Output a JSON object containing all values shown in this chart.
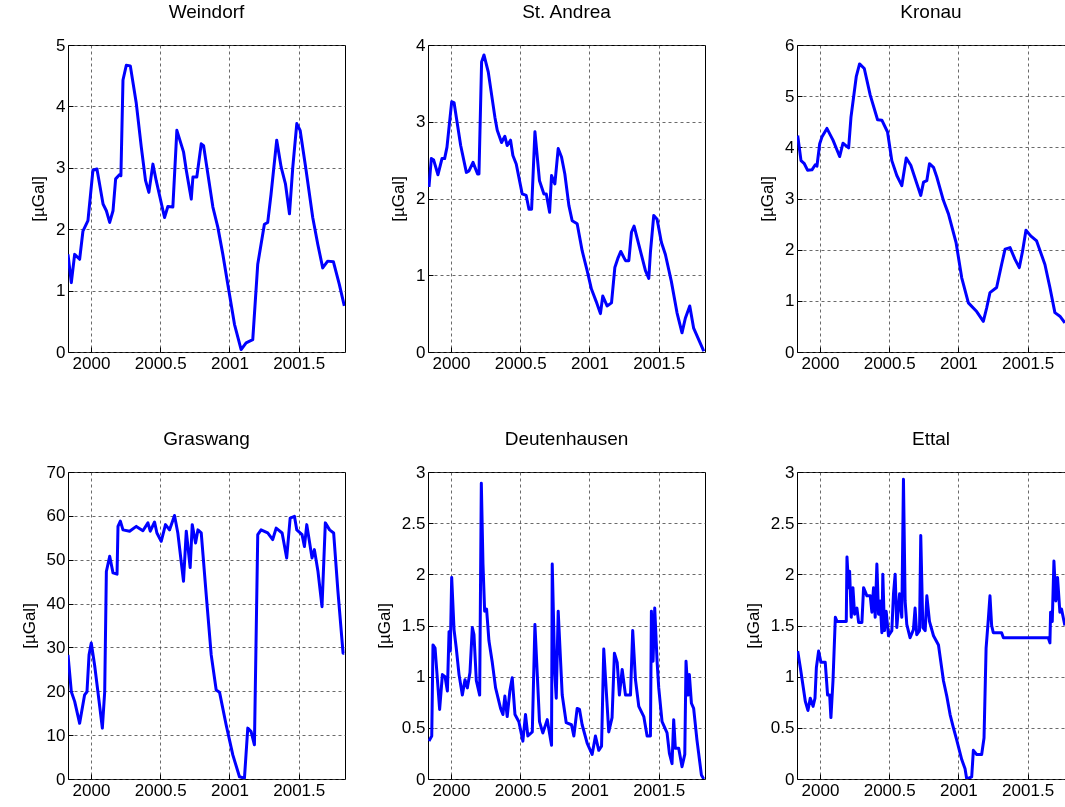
{
  "chart_data": [
    {
      "type": "line",
      "title": "Weindorf",
      "ylabel": "[µGal]",
      "xlim": [
        1999.834,
        2001.834
      ],
      "xticks": [
        2000,
        2000.5,
        2001,
        2001.5
      ],
      "ylim": [
        0,
        5
      ],
      "yticks": [
        0,
        1,
        2,
        3,
        4,
        5
      ],
      "grid": true,
      "series": [
        {
          "color": "#0000ff",
          "x": [
            1999.834,
            1999.858,
            1999.882,
            1999.918,
            1999.942,
            1999.978,
            2000.014,
            2000.043,
            2000.087,
            2000.111,
            2000.135,
            2000.159,
            2000.178,
            2000.207,
            2000.216,
            2000.231,
            2000.255,
            2000.284,
            2000.327,
            2000.363,
            2000.394,
            2000.418,
            2000.447,
            2000.471,
            2000.531,
            2000.555,
            2000.591,
            2000.62,
            2000.668,
            2000.688,
            2000.724,
            2000.736,
            2000.764,
            2000.796,
            2000.813,
            2000.88,
            2000.916,
            2000.952,
            2000.988,
            2001.036,
            2001.084,
            2001.12,
            2001.168,
            2001.204,
            2001.252,
            2001.276,
            2001.3,
            2001.341,
            2001.373,
            2001.404,
            2001.433,
            2001.457,
            2001.486,
            2001.51,
            2001.553,
            2001.601,
            2001.637,
            2001.673,
            2001.709,
            2001.75,
            2001.793,
            2001.829
          ],
          "values": [
            1.59,
            1.13,
            1.59,
            1.51,
            1.97,
            2.14,
            2.96,
            2.98,
            2.41,
            2.3,
            2.11,
            2.3,
            2.82,
            2.89,
            2.87,
            4.43,
            4.67,
            4.66,
            4.05,
            3.34,
            2.79,
            2.6,
            3.06,
            2.79,
            2.19,
            2.37,
            2.36,
            3.61,
            3.26,
            2.96,
            2.49,
            2.85,
            2.85,
            3.39,
            3.36,
            2.36,
            2.03,
            1.59,
            1.1,
            0.45,
            0.04,
            0.15,
            0.2,
            1.43,
            2.08,
            2.11,
            2.57,
            3.45,
            3.01,
            2.74,
            2.25,
            3.01,
            3.72,
            3.61,
            2.96,
            2.19,
            1.76,
            1.37,
            1.48,
            1.47,
            1.1,
            0.75
          ]
        }
      ]
    },
    {
      "type": "line",
      "title": "St. Andrea",
      "ylabel": "[µGal]",
      "xlim": [
        1999.834,
        2001.834
      ],
      "xticks": [
        2000,
        2000.5,
        2001,
        2001.5
      ],
      "ylim": [
        0,
        4
      ],
      "yticks": [
        0,
        1,
        2,
        3,
        4
      ],
      "grid": true,
      "series": [
        {
          "color": "#0000ff",
          "x": [
            1999.841,
            1999.858,
            1999.875,
            1999.906,
            1999.935,
            1999.954,
            1999.971,
            2000.005,
            2000.022,
            2000.07,
            2000.111,
            2000.13,
            2000.159,
            2000.192,
            2000.202,
            2000.221,
            2000.238,
            2000.269,
            2000.317,
            2000.334,
            2000.365,
            2000.389,
            2000.406,
            2000.43,
            2000.447,
            2000.471,
            2000.514,
            2000.543,
            2000.563,
            2000.582,
            2000.606,
            2000.639,
            2000.671,
            2000.688,
            2000.712,
            2000.726,
            2000.75,
            2000.774,
            2000.798,
            2000.822,
            2000.851,
            2000.875,
            2000.911,
            2000.947,
            2000.983,
            2001.014,
            2001.048,
            2001.079,
            2001.096,
            2001.127,
            2001.159,
            2001.183,
            2001.207,
            2001.226,
            2001.26,
            2001.284,
            2001.303,
            2001.322,
            2001.356,
            2001.404,
            2001.428,
            2001.44,
            2001.464,
            2001.488,
            2001.519,
            2001.548,
            2001.591,
            2001.632,
            2001.668,
            2001.692,
            2001.724,
            2001.752,
            2001.825
          ],
          "values": [
            2.15,
            2.52,
            2.5,
            2.31,
            2.52,
            2.52,
            2.67,
            3.26,
            3.25,
            2.69,
            2.34,
            2.36,
            2.47,
            2.32,
            2.32,
            3.78,
            3.87,
            3.65,
            3.06,
            2.89,
            2.73,
            2.81,
            2.69,
            2.76,
            2.56,
            2.45,
            2.06,
            2.04,
            1.86,
            1.86,
            2.87,
            2.23,
            2.06,
            2.06,
            1.82,
            2.3,
            2.19,
            2.65,
            2.54,
            2.32,
            1.91,
            1.71,
            1.67,
            1.32,
            1.06,
            0.82,
            0.66,
            0.5,
            0.73,
            0.6,
            0.64,
            1.1,
            1.23,
            1.31,
            1.19,
            1.19,
            1.56,
            1.64,
            1.4,
            1.06,
            0.96,
            1.3,
            1.78,
            1.73,
            1.43,
            1.27,
            0.92,
            0.51,
            0.25,
            0.44,
            0.6,
            0.31,
            0.01
          ]
        }
      ]
    },
    {
      "type": "line",
      "title": "Kronau",
      "ylabel": "[µGal]",
      "xlim": [
        1999.834,
        2001.77
      ],
      "xticks": [
        2000,
        2000.5,
        2001,
        2001.5
      ],
      "ylim": [
        0,
        6
      ],
      "yticks": [
        0,
        1,
        2,
        3,
        4,
        5,
        6
      ],
      "grid": true,
      "series": [
        {
          "color": "#0000ff",
          "x": [
            1999.839,
            1999.863,
            1999.887,
            1999.911,
            1999.942,
            1999.966,
            1999.978,
            1999.998,
            2000.014,
            2000.05,
            2000.094,
            2000.142,
            2000.166,
            2000.207,
            2000.224,
            2000.262,
            2000.286,
            2000.32,
            2000.363,
            2000.416,
            2000.447,
            2000.488,
            2000.519,
            2000.555,
            2000.591,
            2000.623,
            2000.656,
            2000.7,
            2000.728,
            2000.748,
            2000.772,
            2000.791,
            2000.82,
            2000.844,
            2000.892,
            2000.928,
            2000.983,
            2001.024,
            2001.072,
            2001.132,
            2001.18,
            2001.204,
            2001.228,
            2001.276,
            2001.312,
            2001.337,
            2001.373,
            2001.409,
            2001.44,
            2001.464,
            2001.488,
            2001.522,
            2001.565,
            2001.625,
            2001.661,
            2001.697,
            2001.733,
            2001.769
          ],
          "values": [
            4.23,
            3.74,
            3.68,
            3.55,
            3.56,
            3.66,
            3.63,
            4.07,
            4.2,
            4.37,
            4.14,
            3.82,
            4.08,
            3.99,
            4.59,
            5.38,
            5.63,
            5.54,
            5.02,
            4.54,
            4.53,
            4.3,
            3.74,
            3.45,
            3.25,
            3.79,
            3.65,
            3.29,
            3.06,
            3.32,
            3.35,
            3.68,
            3.61,
            3.42,
            2.96,
            2.7,
            2.14,
            1.45,
            0.96,
            0.79,
            0.6,
            0.86,
            1.16,
            1.26,
            1.71,
            2.01,
            2.04,
            1.81,
            1.65,
            1.98,
            2.38,
            2.27,
            2.17,
            1.71,
            1.26,
            0.77,
            0.7,
            0.57
          ]
        }
      ]
    },
    {
      "type": "line",
      "title": "Graswang",
      "ylabel": "[µGal]",
      "xlim": [
        1999.834,
        2001.834
      ],
      "xticks": [
        2000,
        2000.5,
        2001,
        2001.5
      ],
      "ylim": [
        0,
        70
      ],
      "yticks": [
        0,
        10,
        20,
        30,
        40,
        50,
        60,
        70
      ],
      "grid": true,
      "series": [
        {
          "color": "#0000ff",
          "x": [
            1999.834,
            1999.858,
            1999.882,
            1999.918,
            1999.954,
            1999.971,
            1999.986,
            2000.002,
            2000.026,
            2000.05,
            2000.082,
            2000.099,
            2000.111,
            2000.135,
            2000.159,
            2000.188,
            2000.195,
            2000.212,
            2000.231,
            2000.279,
            2000.327,
            2000.375,
            2000.411,
            2000.428,
            2000.459,
            2000.476,
            2000.507,
            2000.538,
            2000.567,
            2000.603,
            2000.627,
            2000.668,
            2000.688,
            2000.716,
            2000.731,
            2000.755,
            2000.772,
            2000.796,
            2000.832,
            2000.868,
            2000.904,
            2000.928,
            2000.976,
            2001.024,
            2001.072,
            2001.108,
            2001.132,
            2001.156,
            2001.18,
            2001.204,
            2001.228,
            2001.276,
            2001.312,
            2001.337,
            2001.38,
            2001.413,
            2001.438,
            2001.469,
            2001.486,
            2001.524,
            2001.541,
            2001.558,
            2001.596,
            2001.613,
            2001.639,
            2001.668,
            2001.692,
            2001.723,
            2001.752,
            2001.783,
            2001.82,
            2001.829
          ],
          "values": [
            28.3,
            19.9,
            17.7,
            12.7,
            19.2,
            19.9,
            28.3,
            31,
            26,
            19.9,
            11.6,
            19.9,
            47.3,
            50.8,
            47,
            46.7,
            57.6,
            58.8,
            56.8,
            56.5,
            57.6,
            56.6,
            58.4,
            56.5,
            58.6,
            56.1,
            54.2,
            58,
            56.8,
            60.1,
            56.1,
            45.1,
            56.5,
            48.2,
            58,
            53.8,
            56.8,
            56.1,
            42,
            28.3,
            20.3,
            19.8,
            12.3,
            5.5,
            0.5,
            0.2,
            11.6,
            10.8,
            7.8,
            55.7,
            56.8,
            56.1,
            54.6,
            57.2,
            56.1,
            50.4,
            59.5,
            59.9,
            56.8,
            55.7,
            53,
            58,
            50.4,
            52.3,
            47.3,
            39.3,
            58.4,
            56.8,
            56.1,
            42.8,
            28.7,
            28.7
          ]
        }
      ]
    },
    {
      "type": "line",
      "title": "Deutenhausen",
      "ylabel": "[µGal]",
      "xlim": [
        1999.834,
        2001.834
      ],
      "xticks": [
        2000,
        2000.5,
        2001,
        2001.5
      ],
      "ylim": [
        0,
        3
      ],
      "yticks": [
        0,
        0.5,
        1,
        1.5,
        2,
        2.5,
        3
      ],
      "grid": true,
      "series": [
        {
          "color": "#0000ff",
          "x": [
            1999.841,
            1999.861,
            1999.87,
            1999.885,
            1999.918,
            1999.938,
            1999.957,
            1999.974,
            1999.986,
            1999.995,
            2000.005,
            2000.022,
            2000.038,
            2000.058,
            2000.082,
            2000.101,
            2000.118,
            2000.137,
            2000.154,
            2000.166,
            2000.183,
            2000.207,
            2000.219,
            2000.231,
            2000.243,
            2000.257,
            2000.274,
            2000.298,
            2000.322,
            2000.358,
            2000.375,
            2000.389,
            2000.406,
            2000.425,
            2000.442,
            2000.462,
            2000.49,
            2000.519,
            2000.538,
            2000.555,
            2000.587,
            2000.606,
            2000.639,
            2000.663,
            2000.695,
            2000.726,
            2000.731,
            2000.75,
            2000.76,
            2000.774,
            2000.803,
            2000.832,
            2000.87,
            2000.887,
            2000.911,
            2000.928,
            2000.947,
            2000.983,
            2001.019,
            2001.043,
            2001.067,
            2001.087,
            2001.103,
            2001.139,
            2001.163,
            2001.18,
            2001.2,
            2001.216,
            2001.236,
            2001.26,
            2001.296,
            2001.312,
            2001.332,
            2001.356,
            2001.392,
            2001.416,
            2001.44,
            2001.447,
            2001.459,
            2001.471,
            2001.488,
            2001.5,
            2001.524,
            2001.56,
            2001.577,
            2001.596,
            2001.608,
            2001.62,
            2001.644,
            2001.668,
            2001.688,
            2001.697,
            2001.712,
            2001.721,
            2001.736,
            2001.752,
            2001.776,
            2001.808,
            2001.825
          ],
          "values": [
            0.37,
            0.42,
            1.31,
            1.28,
            0.68,
            1.02,
            1,
            0.86,
            1.44,
            1.25,
            1.97,
            1.46,
            1.28,
            1.02,
            0.82,
            0.97,
            0.89,
            1.04,
            1.48,
            1.41,
            0.96,
            0.82,
            2.89,
            2.1,
            1.64,
            1.66,
            1.35,
            1.14,
            0.89,
            0.69,
            0.63,
            0.81,
            0.61,
            0.86,
            0.99,
            0.63,
            0.56,
            0.37,
            0.63,
            0.42,
            0.46,
            1.51,
            0.56,
            0.45,
            0.58,
            0.33,
            2.1,
            1.02,
            0.79,
            1.64,
            0.82,
            0.55,
            0.53,
            0.42,
            0.69,
            0.68,
            0.53,
            0.35,
            0.24,
            0.42,
            0.28,
            0.32,
            1.27,
            0.46,
            0.6,
            1.23,
            1.14,
            0.82,
            1.07,
            0.82,
            0.82,
            1.45,
            0.97,
            0.71,
            0.61,
            0.42,
            0.42,
            1.64,
            1.15,
            1.67,
            1.15,
            0.89,
            0.56,
            0.45,
            0.25,
            0.15,
            0.58,
            0.3,
            0.3,
            0.12,
            0.24,
            1.15,
            0.82,
            1.02,
            0.74,
            0.69,
            0.38,
            0.04,
            0
          ]
        }
      ]
    },
    {
      "type": "line",
      "title": "Ettal",
      "ylabel": "[µGal]",
      "xlim": [
        1999.834,
        2001.77
      ],
      "xticks": [
        2000,
        2000.5,
        2001,
        2001.5
      ],
      "ylim": [
        0,
        3
      ],
      "yticks": [
        0,
        0.5,
        1,
        1.5,
        2,
        2.5,
        3
      ],
      "grid": true,
      "series": [
        {
          "color": "#0000ff",
          "x": [
            1999.839,
            1999.858,
            1999.894,
            1999.913,
            1999.93,
            1999.95,
            1999.964,
            1999.974,
            1999.99,
            2000.007,
            2000.038,
            2000.055,
            2000.07,
            2000.079,
            2000.094,
            2000.111,
            2000.123,
            2000.19,
            2000.195,
            2000.207,
            2000.214,
            2000.226,
            2000.238,
            2000.25,
            2000.267,
            2000.279,
            2000.303,
            2000.315,
            2000.339,
            2000.363,
            2000.375,
            2000.387,
            2000.399,
            2000.411,
            2000.423,
            2000.435,
            2000.447,
            2000.454,
            2000.466,
            2000.478,
            2000.495,
            2000.519,
            2000.531,
            2000.543,
            2000.555,
            2000.575,
            2000.591,
            2000.603,
            2000.615,
            2000.627,
            2000.651,
            2000.675,
            2000.687,
            2000.699,
            2000.719,
            2000.728,
            2000.743,
            2000.76,
            2000.772,
            2000.791,
            2000.82,
            2000.856,
            2000.892,
            2000.916,
            2000.94,
            2000.964,
            2000.988,
            2001.024,
            2001.048,
            2001.06,
            2001.096,
            2001.108,
            2001.132,
            2001.168,
            2001.185,
            2001.2,
            2001.216,
            2001.228,
            2001.24,
            2001.252,
            2001.312,
            2001.325,
            2001.649,
            2001.661,
            2001.666,
            2001.678,
            2001.69,
            2001.704,
            2001.716,
            2001.733,
            2001.745,
            2001.769
          ],
          "values": [
            1.25,
            1.09,
            0.76,
            0.67,
            0.79,
            0.71,
            0.79,
            1.09,
            1.25,
            1.14,
            1.14,
            0.82,
            0.82,
            0.6,
            0.96,
            1.58,
            1.54,
            1.54,
            2.17,
            1.87,
            2.03,
            1.58,
            1.87,
            1.61,
            1.67,
            1.53,
            1.53,
            1.87,
            1.79,
            1.79,
            1.63,
            1.87,
            1.58,
            2.1,
            1.61,
            1.74,
            1.43,
            2,
            1.45,
            1.64,
            1.4,
            1.45,
            1.81,
            2,
            1.48,
            1.81,
            1.58,
            2.93,
            1.74,
            1.51,
            1.38,
            1.46,
            1.67,
            1.41,
            1.45,
            2.38,
            1.48,
            1.45,
            1.79,
            1.54,
            1.4,
            1.31,
            0.96,
            0.81,
            0.63,
            0.5,
            0.38,
            0.19,
            0.1,
            0,
            0.02,
            0.28,
            0.24,
            0.24,
            0.4,
            1.28,
            1.56,
            1.79,
            1.5,
            1.43,
            1.43,
            1.38,
            1.38,
            1.33,
            1.63,
            1.54,
            2.13,
            1.74,
            1.97,
            1.63,
            1.66,
            1.5
          ]
        }
      ]
    }
  ]
}
